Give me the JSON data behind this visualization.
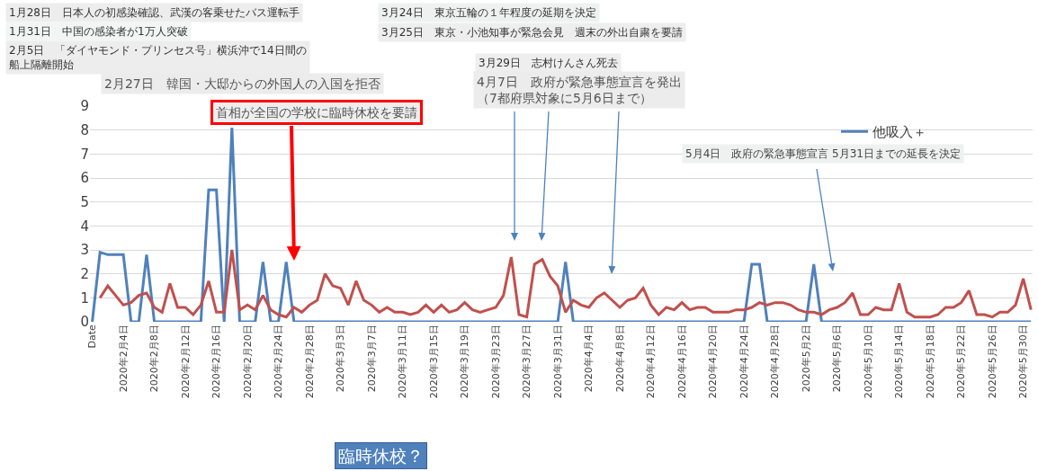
{
  "chart_data": {
    "type": "line",
    "categories": [
      "Date",
      null,
      null,
      null,
      "2020年2月4日",
      null,
      null,
      null,
      "2020年2月8日",
      null,
      null,
      null,
      "2020年2月12日",
      null,
      null,
      null,
      "2020年2月16日",
      null,
      null,
      null,
      "2020年2月20日",
      null,
      null,
      null,
      "2020年2月24日",
      null,
      null,
      null,
      "2020年2月28日",
      null,
      null,
      null,
      "2020年3月3日",
      null,
      null,
      null,
      "2020年3月7日",
      null,
      null,
      null,
      "2020年3月11日",
      null,
      null,
      null,
      "2020年3月15日",
      null,
      null,
      null,
      "2020年3月19日",
      null,
      null,
      null,
      "2020年3月23日",
      null,
      null,
      null,
      "2020年3月27日",
      null,
      null,
      null,
      "2020年3月31日",
      null,
      null,
      null,
      "2020年4月4日",
      null,
      null,
      null,
      "2020年4月8日",
      null,
      null,
      null,
      "2020年4月12日",
      null,
      null,
      null,
      "2020年4月16日",
      null,
      null,
      null,
      "2020年4月20日",
      null,
      null,
      null,
      "2020年4月24日",
      null,
      null,
      null,
      "2020年4月28日",
      null,
      null,
      null,
      "2020年5月2日",
      null,
      null,
      null,
      "2020年5月6日",
      null,
      null,
      null,
      "2020年5月10日",
      null,
      null,
      null,
      "2020年5月14日",
      null,
      null,
      null,
      "2020年5月18日",
      null,
      null,
      null,
      "2020年5月22日",
      null,
      null,
      null,
      "2020年5月26日",
      null,
      null,
      null,
      "2020年5月30日",
      null
    ],
    "series": [
      {
        "name": "他吸入＋",
        "color": "#4f81bd",
        "values": [
          0,
          2.9,
          2.8,
          2.8,
          2.8,
          0,
          0,
          2.8,
          0,
          0,
          0,
          0,
          0,
          0,
          0,
          5.5,
          5.5,
          0,
          8.1,
          0,
          0,
          0,
          2.5,
          0,
          0,
          2.5,
          0,
          0,
          0,
          0,
          0,
          0,
          0,
          0,
          0,
          0,
          0,
          0,
          0,
          0,
          0,
          0,
          0,
          0,
          0,
          0,
          0,
          0,
          0,
          0,
          0,
          0,
          0,
          0,
          0,
          0,
          0,
          0,
          0,
          0,
          0,
          2.5,
          0,
          0,
          0,
          0,
          0,
          0,
          0,
          0,
          0,
          0,
          0,
          0,
          0,
          0,
          0,
          0,
          0,
          0,
          0,
          0,
          0,
          0,
          0,
          2.4,
          2.4,
          0,
          0,
          0,
          0,
          0,
          0,
          2.4,
          0,
          0,
          0,
          0,
          0,
          0,
          0,
          0,
          0,
          0,
          0,
          0,
          0,
          0,
          0,
          0,
          0,
          0,
          0,
          0,
          0,
          0,
          0,
          0,
          0,
          0,
          0,
          0
        ]
      },
      {
        "color": "#c0504d",
        "values": [
          null,
          1.0,
          1.5,
          1.1,
          0.7,
          0.8,
          1.1,
          1.2,
          0.6,
          0.4,
          1.6,
          0.6,
          0.6,
          0.3,
          0.7,
          1.7,
          0.4,
          0.4,
          3.0,
          0.5,
          0.7,
          0.5,
          1.1,
          0.5,
          0.3,
          0.2,
          0.6,
          0.4,
          0.7,
          0.9,
          2.0,
          1.5,
          1.4,
          0.7,
          1.7,
          0.9,
          0.7,
          0.4,
          0.6,
          0.4,
          0.4,
          0.3,
          0.4,
          0.7,
          0.4,
          0.7,
          0.4,
          0.5,
          0.8,
          0.5,
          0.4,
          0.5,
          0.6,
          1.1,
          2.7,
          0.3,
          0.2,
          2.4,
          2.6,
          1.9,
          1.5,
          0.4,
          0.9,
          0.7,
          0.6,
          1.0,
          1.2,
          0.9,
          0.6,
          0.9,
          1.0,
          1.4,
          0.7,
          0.3,
          0.6,
          0.5,
          0.8,
          0.5,
          0.6,
          0.6,
          0.4,
          0.4,
          0.4,
          0.5,
          0.5,
          0.6,
          0.8,
          0.7,
          0.8,
          0.8,
          0.7,
          0.5,
          0.4,
          0.4,
          0.3,
          0.5,
          0.6,
          0.8,
          1.2,
          0.3,
          0.3,
          0.6,
          0.5,
          0.5,
          1.6,
          0.4,
          0.2,
          0.2,
          0.2,
          0.3,
          0.6,
          0.6,
          0.8,
          1.3,
          0.3,
          0.3,
          0.2,
          0.4,
          0.4,
          0.7,
          1.8,
          0.5
        ]
      }
    ],
    "ylim": [
      0,
      9
    ],
    "yticks": [
      0,
      1,
      2,
      3,
      4,
      5,
      6,
      7,
      8,
      9
    ],
    "grid": "y",
    "legend": "top right",
    "marker": "none",
    "line_style": "solid",
    "annotations": [
      "1月28日　日本人の初感染確認、武漢の客乗せたバス運転手",
      "1月31日　中国の感染者が1万人突破",
      "2月5日　「ダイヤモンド・プリンセス号」横浜沖で14日間の船上隔離開始",
      "3月24日　東京五輪の１年程度の延期を決定",
      "3月25日　東京・小池知事が緊急会見　週末の外出自粛を要請",
      "3月29日　志村けんさん死去",
      "2月27日　韓国・大邸からの外国人の入国を拒否",
      "首相が全国の学校に臨時休校を要請",
      "4月7日　政府が緊急事態宣言を発出（7都府県対象に5月6日まで）",
      "5月4日　政府の緊急事態宣言 5月31日までの延長を決定",
      "臨時休校？"
    ]
  }
}
